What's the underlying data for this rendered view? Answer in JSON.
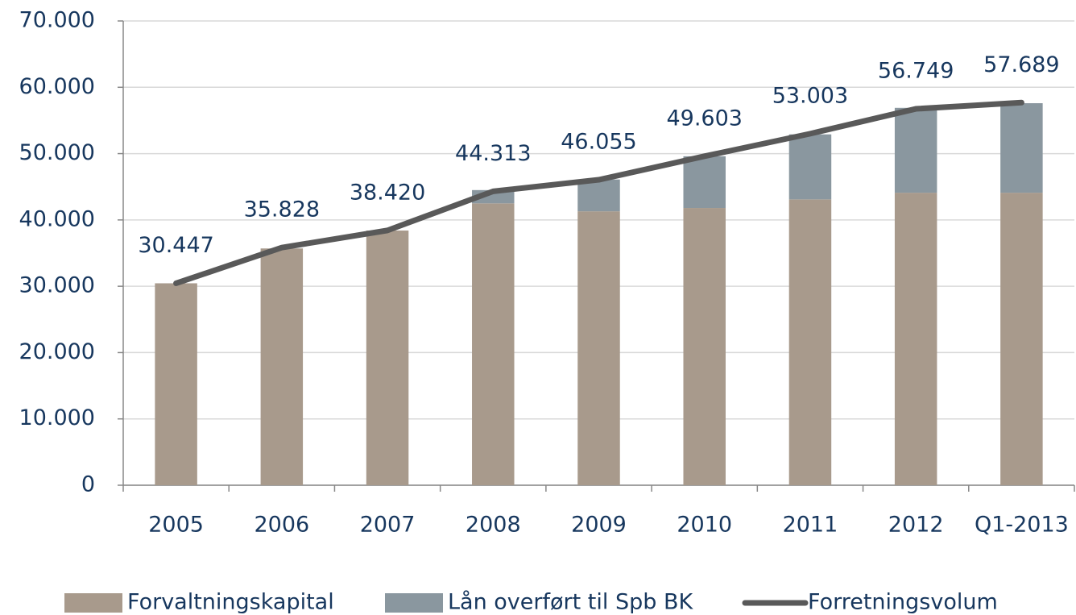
{
  "chart_data": {
    "type": "bar_line",
    "categories": [
      "2005",
      "2006",
      "2007",
      "2008",
      "2009",
      "2010",
      "2011",
      "2012",
      "Q1-2013"
    ],
    "series": [
      {
        "name": "Forvaltningskapital",
        "type": "bar",
        "color": "#a89a8c",
        "values": [
          30447,
          35700,
          38400,
          42500,
          41300,
          41800,
          43100,
          44100,
          44100
        ]
      },
      {
        "name": "Lån overført til Spb BK",
        "type": "bar",
        "color": "#8a979f",
        "values": [
          0,
          0,
          0,
          2000,
          4800,
          7800,
          9800,
          12800,
          13500
        ]
      },
      {
        "name": "Forretningsvolum",
        "type": "line",
        "color": "#595959",
        "values": [
          30447,
          35828,
          38420,
          44313,
          46055,
          49603,
          53003,
          56749,
          57689
        ],
        "value_labels": [
          "30.447",
          "35.828",
          "38.420",
          "44.313",
          "46.055",
          "49.603",
          "53.003",
          "56.749",
          "57.689"
        ]
      }
    ],
    "ylim": [
      0,
      70000
    ],
    "yticks": [
      0,
      {
        "value": 10000,
        "label": "10.000"
      },
      {
        "value": 20000,
        "label": "20.000"
      },
      {
        "value": 30000,
        "label": "30.000"
      },
      {
        "value": 40000,
        "label": "40.000"
      },
      {
        "value": 50000,
        "label": "50.000"
      },
      {
        "value": 60000,
        "label": "60.000"
      },
      {
        "value": 70000,
        "label": "70.000"
      }
    ],
    "grid": true,
    "legend": "bottom"
  }
}
